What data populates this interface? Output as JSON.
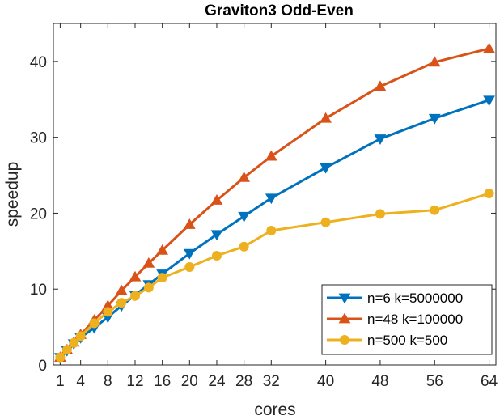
{
  "chart_data": {
    "type": "line",
    "title": "Graviton3 Odd-Even",
    "xlabel": "cores",
    "ylabel": "speedup",
    "xlim": [
      0,
      65
    ],
    "ylim": [
      0,
      45
    ],
    "xticks": [
      1,
      4,
      8,
      12,
      16,
      20,
      24,
      28,
      32,
      40,
      48,
      56,
      64
    ],
    "yticks": [
      0,
      10,
      20,
      30,
      40
    ],
    "grid": false,
    "legend_position": "bottom-right",
    "x": [
      1,
      2,
      3,
      4,
      6,
      8,
      10,
      12,
      14,
      16,
      20,
      24,
      28,
      32,
      40,
      48,
      56,
      64
    ],
    "series": [
      {
        "name": "n=6 k=5000000",
        "color": "#0072BD",
        "marker": "triangle-down",
        "values": [
          1.0,
          1.9,
          2.8,
          3.6,
          4.9,
          6.3,
          7.8,
          9.2,
          10.6,
          12.0,
          14.7,
          17.2,
          19.6,
          22.0,
          26.0,
          29.8,
          32.5,
          34.9
        ]
      },
      {
        "name": "n=48 k=100000",
        "color": "#D95319",
        "marker": "triangle-up",
        "values": [
          1.0,
          2.0,
          3.0,
          4.0,
          5.9,
          7.8,
          9.8,
          11.6,
          13.4,
          15.1,
          18.5,
          21.7,
          24.7,
          27.5,
          32.5,
          36.7,
          39.9,
          41.7
        ]
      },
      {
        "name": "n=500 k=500",
        "color": "#EDB120",
        "marker": "circle",
        "values": [
          1.0,
          2.0,
          2.9,
          3.8,
          5.5,
          7.0,
          8.2,
          9.1,
          10.2,
          11.5,
          12.9,
          14.4,
          15.6,
          17.7,
          18.8,
          19.9,
          20.4,
          22.6
        ]
      }
    ]
  }
}
